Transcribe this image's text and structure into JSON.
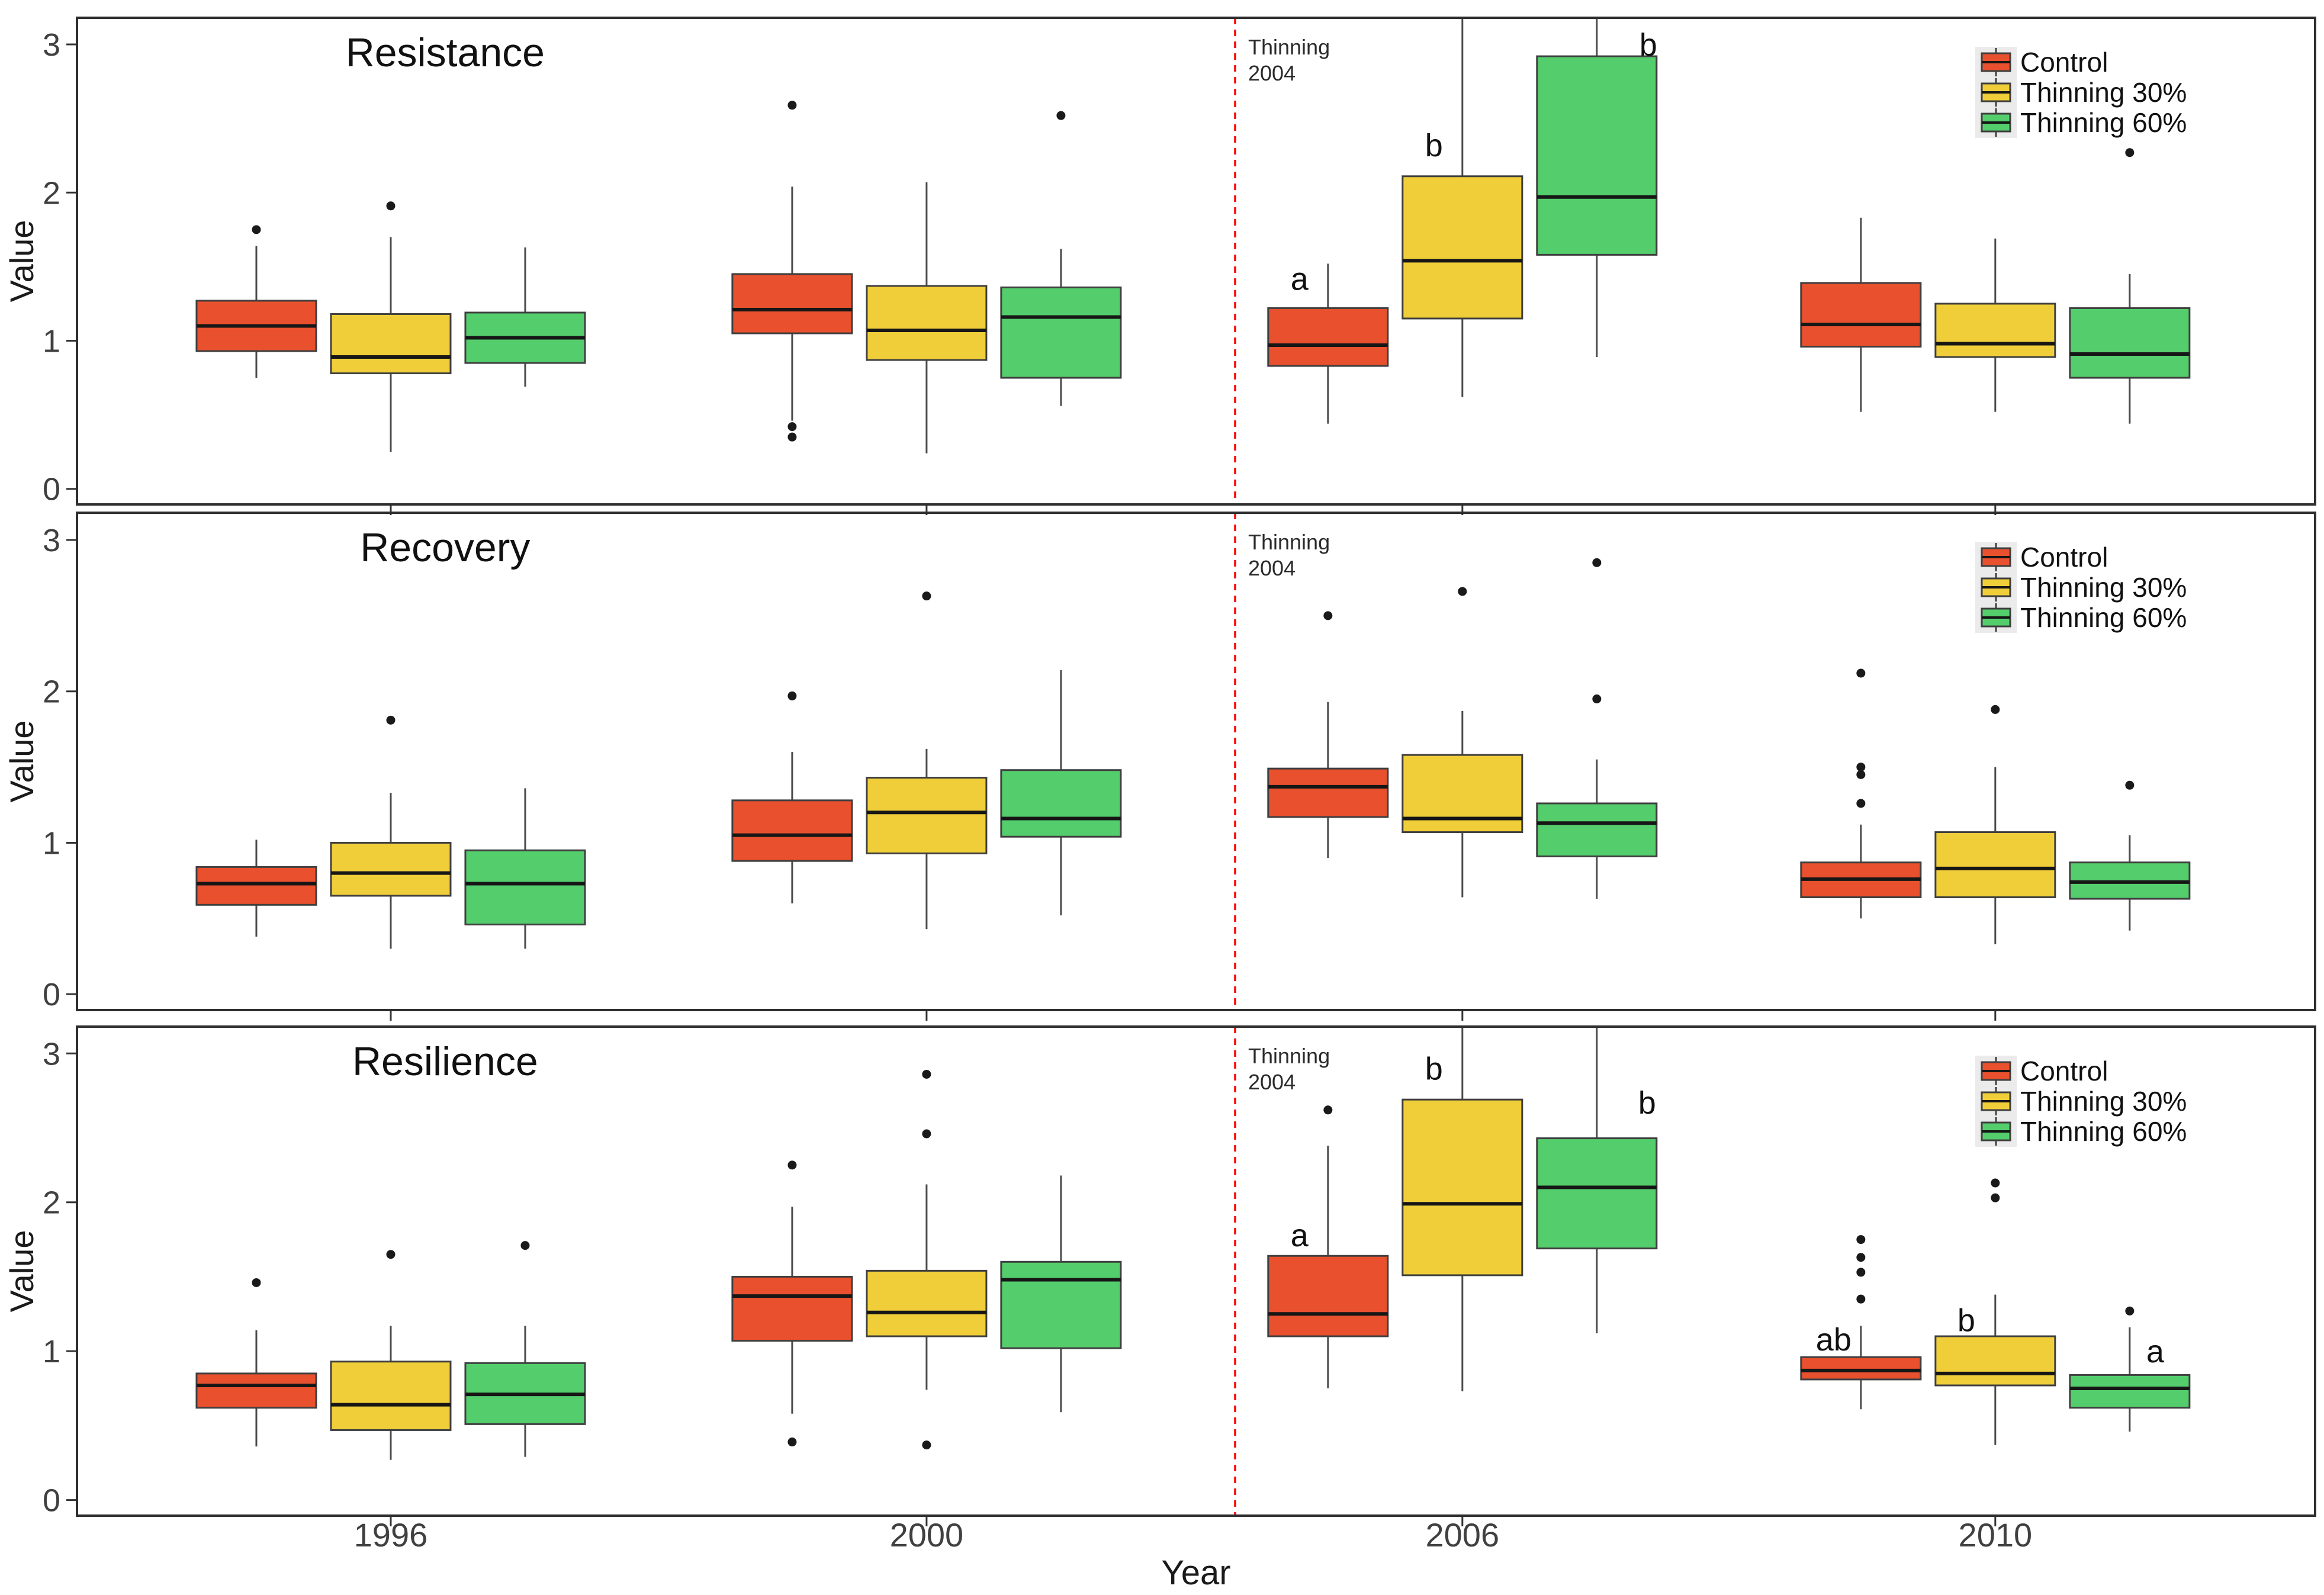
{
  "figure": {
    "x_axis_title": "Year",
    "y_axis_title": "Value",
    "categories": [
      "1996",
      "2000",
      "2006",
      "2010"
    ],
    "y_ticks": [
      0,
      1,
      2,
      3
    ],
    "legend": {
      "items": [
        {
          "label": "Control",
          "color": "#E8502E"
        },
        {
          "label": "Thinning 30%",
          "color": "#F0CE3A"
        },
        {
          "label": "Thinning 60%",
          "color": "#54CE6C"
        }
      ]
    },
    "event_line": {
      "label_lines": [
        "Thinning",
        "2004"
      ],
      "color": "#FF0000",
      "position_between": [
        "2000",
        "2006"
      ]
    },
    "style_colors": {
      "box_stroke": "#3F3F3F",
      "median": "#161616",
      "whisker": "#4A4A4A",
      "outlier": "#1A1A1A",
      "panel_border": "#2E2E2E",
      "tick_label": "#404040",
      "legend_key_bg": "#EBEBEB"
    }
  },
  "chart_data": [
    {
      "type": "boxplot",
      "title": "Resistance",
      "ylabel": "Value",
      "xlabel": "Year",
      "ylim": [
        0,
        3
      ],
      "legend_position": "top-right",
      "categories": [
        "1996",
        "2000",
        "2006",
        "2010"
      ],
      "series": [
        {
          "name": "Control",
          "color": "#E8502E",
          "boxes": [
            {
              "category": "1996",
              "whisker_low": 0.75,
              "q1": 0.93,
              "median": 1.1,
              "q3": 1.27,
              "whisker_high": 1.64,
              "outliers": [
                1.75
              ]
            },
            {
              "category": "2000",
              "whisker_low": 0.46,
              "q1": 1.05,
              "median": 1.21,
              "q3": 1.45,
              "whisker_high": 2.04,
              "outliers": [
                2.59,
                0.42,
                0.35
              ]
            },
            {
              "category": "2006",
              "whisker_low": 0.44,
              "q1": 0.83,
              "median": 0.97,
              "q3": 1.22,
              "whisker_high": 1.52,
              "outliers": [],
              "letter": "a",
              "letter_value": 1.42,
              "letter_dx": -48
            },
            {
              "category": "2010",
              "whisker_low": 0.52,
              "q1": 0.96,
              "median": 1.11,
              "q3": 1.39,
              "whisker_high": 1.83,
              "outliers": []
            }
          ]
        },
        {
          "name": "Thinning 30%",
          "color": "#F0CE3A",
          "boxes": [
            {
              "category": "1996",
              "whisker_low": 0.25,
              "q1": 0.78,
              "median": 0.89,
              "q3": 1.18,
              "whisker_high": 1.7,
              "outliers": [
                1.91
              ]
            },
            {
              "category": "2000",
              "whisker_low": 0.24,
              "q1": 0.87,
              "median": 1.07,
              "q3": 1.37,
              "whisker_high": 2.07,
              "outliers": []
            },
            {
              "category": "2006",
              "whisker_low": 0.62,
              "q1": 1.15,
              "median": 1.54,
              "q3": 2.11,
              "whisker_high": 3.2,
              "outliers": [],
              "letter": "b",
              "letter_value": 2.32,
              "letter_dx": -48
            },
            {
              "category": "2010",
              "whisker_low": 0.52,
              "q1": 0.89,
              "median": 0.98,
              "q3": 1.25,
              "whisker_high": 1.69,
              "outliers": []
            }
          ]
        },
        {
          "name": "Thinning 60%",
          "color": "#54CE6C",
          "boxes": [
            {
              "category": "1996",
              "whisker_low": 0.69,
              "q1": 0.85,
              "median": 1.02,
              "q3": 1.19,
              "whisker_high": 1.63,
              "outliers": []
            },
            {
              "category": "2000",
              "whisker_low": 0.56,
              "q1": 0.75,
              "median": 1.16,
              "q3": 1.36,
              "whisker_high": 1.62,
              "outliers": [
                2.52
              ]
            },
            {
              "category": "2006",
              "whisker_low": 0.89,
              "q1": 1.58,
              "median": 1.97,
              "q3": 2.92,
              "whisker_high": 3.2,
              "outliers": [],
              "letter": "b",
              "letter_value": 3.0,
              "letter_dx": 87
            },
            {
              "category": "2010",
              "whisker_low": 0.44,
              "q1": 0.75,
              "median": 0.91,
              "q3": 1.22,
              "whisker_high": 1.45,
              "outliers": [
                2.27
              ]
            }
          ]
        }
      ]
    },
    {
      "type": "boxplot",
      "title": "Recovery",
      "ylabel": "Value",
      "xlabel": "Year",
      "ylim": [
        0,
        3
      ],
      "legend_position": "top-right",
      "categories": [
        "1996",
        "2000",
        "2006",
        "2010"
      ],
      "series": [
        {
          "name": "Control",
          "color": "#E8502E",
          "boxes": [
            {
              "category": "1996",
              "whisker_low": 0.38,
              "q1": 0.59,
              "median": 0.73,
              "q3": 0.84,
              "whisker_high": 1.02,
              "outliers": []
            },
            {
              "category": "2000",
              "whisker_low": 0.6,
              "q1": 0.88,
              "median": 1.05,
              "q3": 1.28,
              "whisker_high": 1.6,
              "outliers": [
                1.97
              ]
            },
            {
              "category": "2006",
              "whisker_low": 0.9,
              "q1": 1.17,
              "median": 1.37,
              "q3": 1.49,
              "whisker_high": 1.93,
              "outliers": [
                2.5
              ]
            },
            {
              "category": "2010",
              "whisker_low": 0.5,
              "q1": 0.64,
              "median": 0.76,
              "q3": 0.87,
              "whisker_high": 1.12,
              "outliers": [
                1.26,
                1.45,
                1.5,
                2.12
              ]
            }
          ]
        },
        {
          "name": "Thinning 30%",
          "color": "#F0CE3A",
          "boxes": [
            {
              "category": "1996",
              "whisker_low": 0.3,
              "q1": 0.65,
              "median": 0.8,
              "q3": 1.0,
              "whisker_high": 1.33,
              "outliers": [
                1.81
              ]
            },
            {
              "category": "2000",
              "whisker_low": 0.43,
              "q1": 0.93,
              "median": 1.2,
              "q3": 1.43,
              "whisker_high": 1.62,
              "outliers": [
                2.63
              ]
            },
            {
              "category": "2006",
              "whisker_low": 0.64,
              "q1": 1.07,
              "median": 1.16,
              "q3": 1.58,
              "whisker_high": 1.87,
              "outliers": [
                2.66
              ]
            },
            {
              "category": "2010",
              "whisker_low": 0.33,
              "q1": 0.64,
              "median": 0.83,
              "q3": 1.07,
              "whisker_high": 1.5,
              "outliers": [
                1.88
              ]
            }
          ]
        },
        {
          "name": "Thinning 60%",
          "color": "#54CE6C",
          "boxes": [
            {
              "category": "1996",
              "whisker_low": 0.3,
              "q1": 0.46,
              "median": 0.73,
              "q3": 0.95,
              "whisker_high": 1.36,
              "outliers": []
            },
            {
              "category": "2000",
              "whisker_low": 0.52,
              "q1": 1.04,
              "median": 1.16,
              "q3": 1.48,
              "whisker_high": 2.14,
              "outliers": []
            },
            {
              "category": "2006",
              "whisker_low": 0.63,
              "q1": 0.91,
              "median": 1.13,
              "q3": 1.26,
              "whisker_high": 1.55,
              "outliers": [
                1.95,
                2.85
              ]
            },
            {
              "category": "2010",
              "whisker_low": 0.42,
              "q1": 0.63,
              "median": 0.74,
              "q3": 0.87,
              "whisker_high": 1.05,
              "outliers": [
                1.38
              ]
            }
          ]
        }
      ]
    },
    {
      "type": "boxplot",
      "title": "Resilience",
      "ylabel": "Value",
      "xlabel": "Year",
      "ylim": [
        0,
        3
      ],
      "legend_position": "top-right",
      "categories": [
        "1996",
        "2000",
        "2006",
        "2010"
      ],
      "series": [
        {
          "name": "Control",
          "color": "#E8502E",
          "boxes": [
            {
              "category": "1996",
              "whisker_low": 0.36,
              "q1": 0.62,
              "median": 0.77,
              "q3": 0.85,
              "whisker_high": 1.14,
              "outliers": [
                1.46
              ]
            },
            {
              "category": "2000",
              "whisker_low": 0.58,
              "q1": 1.07,
              "median": 1.37,
              "q3": 1.5,
              "whisker_high": 1.97,
              "outliers": [
                2.25,
                0.39
              ]
            },
            {
              "category": "2006",
              "whisker_low": 0.75,
              "q1": 1.1,
              "median": 1.25,
              "q3": 1.64,
              "whisker_high": 2.38,
              "outliers": [
                2.62
              ],
              "letter": "a",
              "letter_value": 1.78,
              "letter_dx": -48
            },
            {
              "category": "2010",
              "whisker_low": 0.61,
              "q1": 0.81,
              "median": 0.87,
              "q3": 0.96,
              "whisker_high": 1.17,
              "outliers": [
                1.35,
                1.53,
                1.63,
                1.75
              ],
              "letter": "ab",
              "letter_value": 1.08,
              "letter_dx": -46
            }
          ]
        },
        {
          "name": "Thinning 30%",
          "color": "#F0CE3A",
          "boxes": [
            {
              "category": "1996",
              "whisker_low": 0.27,
              "q1": 0.47,
              "median": 0.64,
              "q3": 0.93,
              "whisker_high": 1.17,
              "outliers": [
                1.65
              ]
            },
            {
              "category": "2000",
              "whisker_low": 0.74,
              "q1": 1.1,
              "median": 1.26,
              "q3": 1.54,
              "whisker_high": 2.12,
              "outliers": [
                2.86,
                2.46,
                0.37
              ]
            },
            {
              "category": "2006",
              "whisker_low": 0.73,
              "q1": 1.51,
              "median": 1.99,
              "q3": 2.69,
              "whisker_high": 3.2,
              "outliers": [],
              "letter": "b",
              "letter_value": 2.9,
              "letter_dx": -48
            },
            {
              "category": "2010",
              "whisker_low": 0.37,
              "q1": 0.77,
              "median": 0.85,
              "q3": 1.1,
              "whisker_high": 1.38,
              "outliers": [
                2.03,
                2.13
              ],
              "letter": "b",
              "letter_value": 1.21,
              "letter_dx": -49
            }
          ]
        },
        {
          "name": "Thinning 60%",
          "color": "#54CE6C",
          "boxes": [
            {
              "category": "1996",
              "whisker_low": 0.29,
              "q1": 0.51,
              "median": 0.71,
              "q3": 0.92,
              "whisker_high": 1.17,
              "outliers": [
                1.71
              ]
            },
            {
              "category": "2000",
              "whisker_low": 0.59,
              "q1": 1.02,
              "median": 1.48,
              "q3": 1.6,
              "whisker_high": 2.18,
              "outliers": []
            },
            {
              "category": "2006",
              "whisker_low": 1.12,
              "q1": 1.69,
              "median": 2.1,
              "q3": 2.43,
              "whisker_high": 3.2,
              "outliers": [],
              "letter": "b",
              "letter_value": 2.67,
              "letter_dx": 85
            },
            {
              "category": "2010",
              "whisker_low": 0.46,
              "q1": 0.62,
              "median": 0.75,
              "q3": 0.84,
              "whisker_high": 1.16,
              "outliers": [
                1.27
              ],
              "letter": "a",
              "letter_value": 1.0,
              "letter_dx": 43
            }
          ]
        }
      ]
    }
  ]
}
